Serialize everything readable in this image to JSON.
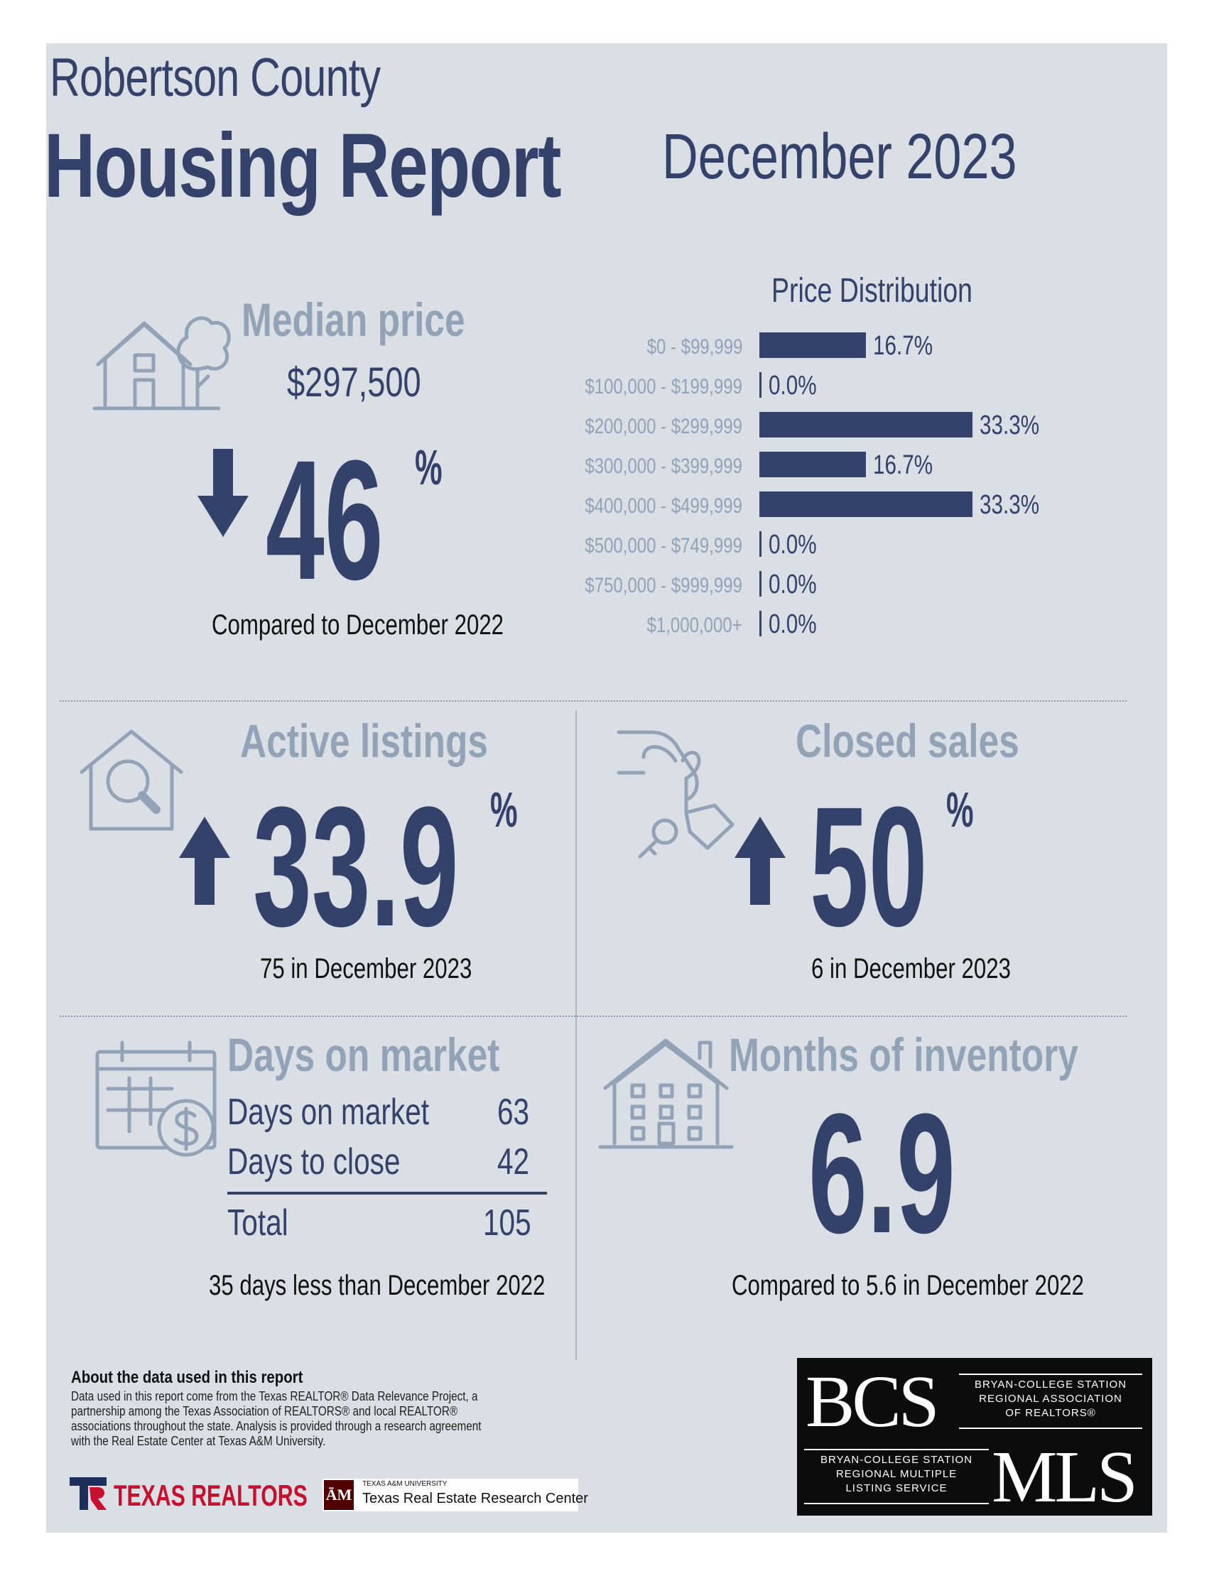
{
  "header": {
    "county": "Robertson County",
    "title": "Housing Report",
    "month": "December 2023"
  },
  "median_price": {
    "title": "Median price",
    "value": "$297,500",
    "change": "46",
    "pct_sign": "%",
    "direction": "down",
    "caption": "Compared to December 2022"
  },
  "price_distribution": {
    "title": "Price Distribution",
    "chart_data": {
      "type": "bar",
      "title": "Price Distribution",
      "categories": [
        "$0 - $99,999",
        "$100,000 - $199,999",
        "$200,000 - $299,999",
        "$300,000 - $399,999",
        "$400,000 - $499,999",
        "$500,000 - $749,999",
        "$750,000 - $999,999",
        "$1,000,000+"
      ],
      "values": [
        16.7,
        0.0,
        33.3,
        16.7,
        33.3,
        0.0,
        0.0,
        0.0
      ],
      "labels": [
        "16.7%",
        "0.0%",
        "33.3%",
        "16.7%",
        "33.3%",
        "0.0%",
        "0.0%",
        "0.0%"
      ],
      "orientation": "horizontal",
      "xlim": [
        0,
        33.3
      ]
    }
  },
  "active_listings": {
    "title": "Active listings",
    "change": "33.9",
    "pct_sign": "%",
    "direction": "up",
    "caption": "75 in December 2023"
  },
  "closed_sales": {
    "title": "Closed sales",
    "change": "50",
    "pct_sign": "%",
    "direction": "up",
    "caption": "6 in December 2023"
  },
  "days_on_market": {
    "title": "Days on market",
    "rows": [
      {
        "label": "Days on market",
        "value": "63"
      },
      {
        "label": "Days to close",
        "value": "42"
      }
    ],
    "total_label": "Total",
    "total_value": "105",
    "caption": "35 days less than December 2022"
  },
  "months_inventory": {
    "title": "Months of inventory",
    "value": "6.9",
    "caption": "Compared to 5.6 in December 2022"
  },
  "footer": {
    "about_title": "About the data used in this report",
    "about_lines": [
      "Data used in this report come from the Texas REALTOR® Data Relevance Project, a",
      "partnership among the Texas Association of REALTORS® and local REALTOR®",
      "associations throughout the state. Analysis is provided through a research agreement",
      "with the Real Estate Center at Texas A&M University."
    ],
    "texas_realtors": "TEXAS REALTORS",
    "tamu_small": "TEXAS A&M UNIVERSITY",
    "tamu_center": "Texas Real Estate Research Center"
  },
  "bcs_logo": {
    "bcs": "BCS",
    "assoc_lines": [
      "BRYAN-COLLEGE STATION",
      "REGIONAL ASSOCIATION",
      "OF REALTORS®"
    ],
    "mls_lines": [
      "BRYAN-COLLEGE STATION",
      "REGIONAL MULTIPLE",
      "LISTING SERVICE"
    ],
    "mls": "MLS"
  },
  "colors": {
    "navy": "#33416b",
    "light": "#92a3b8",
    "panel": "#dadee5"
  }
}
